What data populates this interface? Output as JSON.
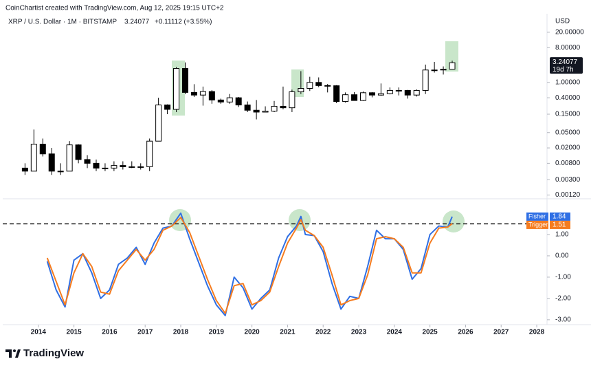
{
  "credit": "CoinChartist created with TradingView.com, Aug 12, 2025 19:15 UTC+2",
  "branding": "TradingView",
  "chart_data": [
    {
      "type": "candlestick",
      "title": "XRP / U.S. Dollar · 1M · BITSTAMP",
      "change": "+0.11112 (+3.55%)",
      "y_label": "USD",
      "countdown": "19d 7h",
      "log_scale": true,
      "grid": false,
      "up_color": "#ffffff",
      "down_color": "#000000",
      "edge_color": "#000000",
      "x": [
        2013.625,
        2013.875,
        2014.125,
        2014.375,
        2014.625,
        2014.875,
        2015.125,
        2015.375,
        2015.625,
        2015.875,
        2016.125,
        2016.375,
        2016.625,
        2016.875,
        2017.125,
        2017.375,
        2017.625,
        2017.875,
        2018.125,
        2018.375,
        2018.625,
        2018.875,
        2019.125,
        2019.375,
        2019.625,
        2019.875,
        2020.125,
        2020.375,
        2020.625,
        2020.875,
        2021.125,
        2021.375,
        2021.625,
        2021.875,
        2022.125,
        2022.375,
        2022.625,
        2022.875,
        2023.125,
        2023.375,
        2023.625,
        2023.875,
        2024.125,
        2024.375,
        2024.625,
        2024.875,
        2025.125,
        2025.375,
        2025.625
      ],
      "open": [
        0.006,
        0.005,
        0.025,
        0.014,
        0.005,
        0.005,
        0.024,
        0.01,
        0.008,
        0.006,
        0.006,
        0.007,
        0.0065,
        0.0065,
        0.0065,
        0.03,
        0.26,
        0.2,
        2.3,
        0.55,
        0.47,
        0.58,
        0.35,
        0.31,
        0.4,
        0.26,
        0.19,
        0.17,
        0.18,
        0.24,
        0.22,
        0.57,
        0.7,
        1.0,
        0.83,
        0.82,
        0.32,
        0.48,
        0.34,
        0.54,
        0.47,
        0.51,
        0.62,
        0.62,
        0.47,
        0.62,
        2.1,
        2.1,
        2.2
      ],
      "high": [
        0.008,
        0.06,
        0.035,
        0.02,
        0.008,
        0.03,
        0.025,
        0.013,
        0.01,
        0.008,
        0.009,
        0.009,
        0.009,
        0.008,
        0.035,
        0.4,
        0.27,
        2.5,
        3.3,
        0.9,
        0.78,
        0.63,
        0.38,
        0.5,
        0.42,
        0.32,
        0.35,
        0.24,
        0.33,
        0.78,
        0.65,
        1.96,
        1.4,
        1.35,
        0.91,
        0.85,
        0.55,
        0.56,
        0.58,
        0.56,
        0.94,
        0.74,
        0.74,
        0.64,
        0.66,
        2.9,
        3.4,
        2.6,
        3.66
      ],
      "low": [
        0.004,
        0.005,
        0.012,
        0.004,
        0.004,
        0.005,
        0.008,
        0.006,
        0.005,
        0.005,
        0.005,
        0.0055,
        0.006,
        0.0055,
        0.005,
        0.03,
        0.15,
        0.17,
        0.5,
        0.42,
        0.25,
        0.28,
        0.28,
        0.28,
        0.23,
        0.17,
        0.11,
        0.17,
        0.17,
        0.2,
        0.17,
        0.5,
        0.6,
        0.75,
        0.55,
        0.29,
        0.3,
        0.34,
        0.33,
        0.41,
        0.45,
        0.49,
        0.46,
        0.38,
        0.43,
        0.5,
        1.8,
        1.6,
        2.2
      ],
      "close": [
        0.005,
        0.025,
        0.014,
        0.005,
        0.005,
        0.024,
        0.01,
        0.008,
        0.006,
        0.006,
        0.007,
        0.0065,
        0.0065,
        0.0065,
        0.03,
        0.26,
        0.2,
        2.3,
        0.55,
        0.47,
        0.58,
        0.35,
        0.31,
        0.4,
        0.26,
        0.19,
        0.17,
        0.18,
        0.24,
        0.22,
        0.57,
        0.7,
        1.0,
        0.83,
        0.82,
        0.32,
        0.48,
        0.34,
        0.54,
        0.47,
        0.51,
        0.62,
        0.62,
        0.47,
        0.62,
        2.1,
        2.1,
        2.2,
        3.24077
      ],
      "xlim": [
        2013,
        2028.25
      ],
      "ylim": [
        0.001,
        40
      ],
      "yticks": [
        {
          "value": 20,
          "label": "20.00000"
        },
        {
          "value": 8,
          "label": "8.00000"
        },
        {
          "value": 1,
          "label": "1.00000"
        },
        {
          "value": 0.4,
          "label": "0.40000"
        },
        {
          "value": 0.15,
          "label": "0.15000"
        },
        {
          "value": 0.05,
          "label": "0.05000"
        },
        {
          "value": 0.02,
          "label": "0.02000"
        },
        {
          "value": 0.008,
          "label": "0.00800"
        },
        {
          "value": 0.003,
          "label": "0.00300"
        },
        {
          "value": 0.0012,
          "label": "0.00120"
        }
      ]
    },
    {
      "type": "line",
      "grid": false,
      "level": 1.5,
      "x": [
        2014.25,
        2014.5,
        2014.75,
        2015,
        2015.25,
        2015.5,
        2015.75,
        2016,
        2016.25,
        2016.5,
        2016.75,
        2017,
        2017.25,
        2017.5,
        2017.75,
        2018,
        2018.25,
        2018.5,
        2018.75,
        2019,
        2019.25,
        2019.5,
        2019.75,
        2020,
        2020.25,
        2020.5,
        2020.75,
        2021,
        2021.25,
        2021.375,
        2021.5,
        2021.75,
        2022,
        2022.25,
        2022.5,
        2022.75,
        2023,
        2023.25,
        2023.5,
        2023.75,
        2024,
        2024.25,
        2024.5,
        2024.75,
        2025,
        2025.25,
        2025.5,
        2025.625
      ],
      "series": [
        {
          "name": "Fisher",
          "color": "#2f6fe4",
          "values": [
            -0.26,
            -1.6,
            -2.4,
            -0.2,
            0.1,
            -0.8,
            -2.0,
            -1.6,
            -0.4,
            -0.1,
            0.4,
            -0.4,
            0.6,
            1.3,
            1.4,
            2.0,
            0.8,
            -0.3,
            -1.4,
            -2.3,
            -2.8,
            -1.0,
            -1.5,
            -2.5,
            -2.0,
            -1.6,
            -0.1,
            0.9,
            1.4,
            1.85,
            1.0,
            0.95,
            0.2,
            -1.3,
            -2.5,
            -1.9,
            -2.0,
            -0.5,
            1.2,
            0.8,
            0.8,
            0.3,
            -1.1,
            -0.6,
            1.0,
            1.4,
            1.35,
            1.84
          ]
        },
        {
          "name": "Trigger",
          "color": "#f57c1f",
          "values": [
            -0.1,
            -1.2,
            -2.3,
            -0.8,
            0.1,
            -0.5,
            -1.7,
            -1.8,
            -0.7,
            -0.2,
            0.3,
            -0.2,
            0.3,
            1.2,
            1.4,
            1.8,
            1.1,
            0.0,
            -1.1,
            -2.1,
            -2.7,
            -1.4,
            -1.3,
            -2.3,
            -2.1,
            -1.7,
            -0.5,
            0.6,
            1.3,
            1.7,
            1.2,
            0.95,
            0.4,
            -0.9,
            -2.3,
            -2.1,
            -2.0,
            -0.9,
            0.8,
            0.9,
            0.8,
            0.4,
            -0.8,
            -0.8,
            0.6,
            1.3,
            1.35,
            1.51
          ]
        }
      ],
      "xlim": [
        2013,
        2028.25
      ],
      "xticks": [
        2014,
        2015,
        2016,
        2017,
        2018,
        2019,
        2020,
        2021,
        2022,
        2023,
        2024,
        2025,
        2026,
        2027,
        2028
      ],
      "ylim": [
        -3.23,
        2.58
      ],
      "yticks": [
        {
          "value": 1,
          "label": "1.00"
        },
        {
          "value": 0,
          "label": "0.00"
        },
        {
          "value": -1,
          "label": "-1.00"
        },
        {
          "value": -2,
          "label": "-2.00"
        },
        {
          "value": -3,
          "label": "-3.00"
        }
      ]
    }
  ]
}
